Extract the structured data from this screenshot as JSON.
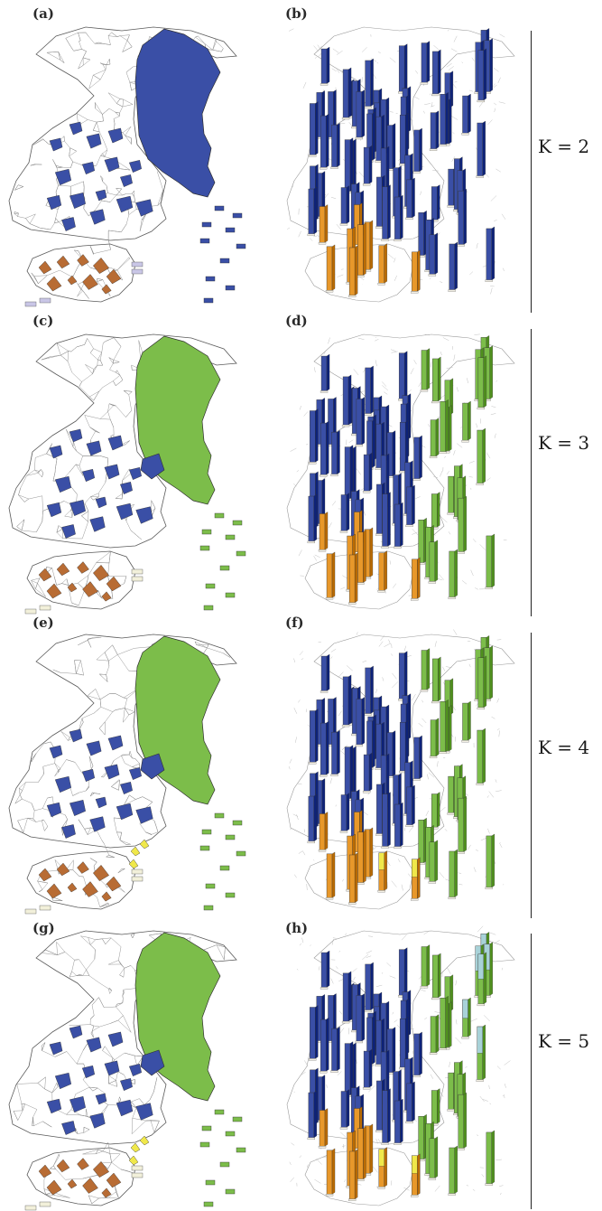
{
  "figure": {
    "rows": [
      {
        "k_label": "K = 2",
        "map_panel": "(a)",
        "bar_panel": "(b)",
        "clusters": 2
      },
      {
        "k_label": "K = 3",
        "map_panel": "(c)",
        "bar_panel": "(d)",
        "clusters": 3
      },
      {
        "k_label": "K = 4",
        "map_panel": "(e)",
        "bar_panel": "(f)",
        "clusters": 4
      },
      {
        "k_label": "K = 5",
        "map_panel": "(g)",
        "bar_panel": "(h)",
        "clusters": 5
      }
    ]
  },
  "colors": {
    "blue": "#3a4fa6",
    "green": "#7cbd4a",
    "orange": "#e8982a",
    "brown": "#b86c34",
    "yellow": "#f0e84a",
    "lightblue": "#a8d2d8",
    "outline": "#5a5a5a",
    "land": "#ffffff"
  }
}
